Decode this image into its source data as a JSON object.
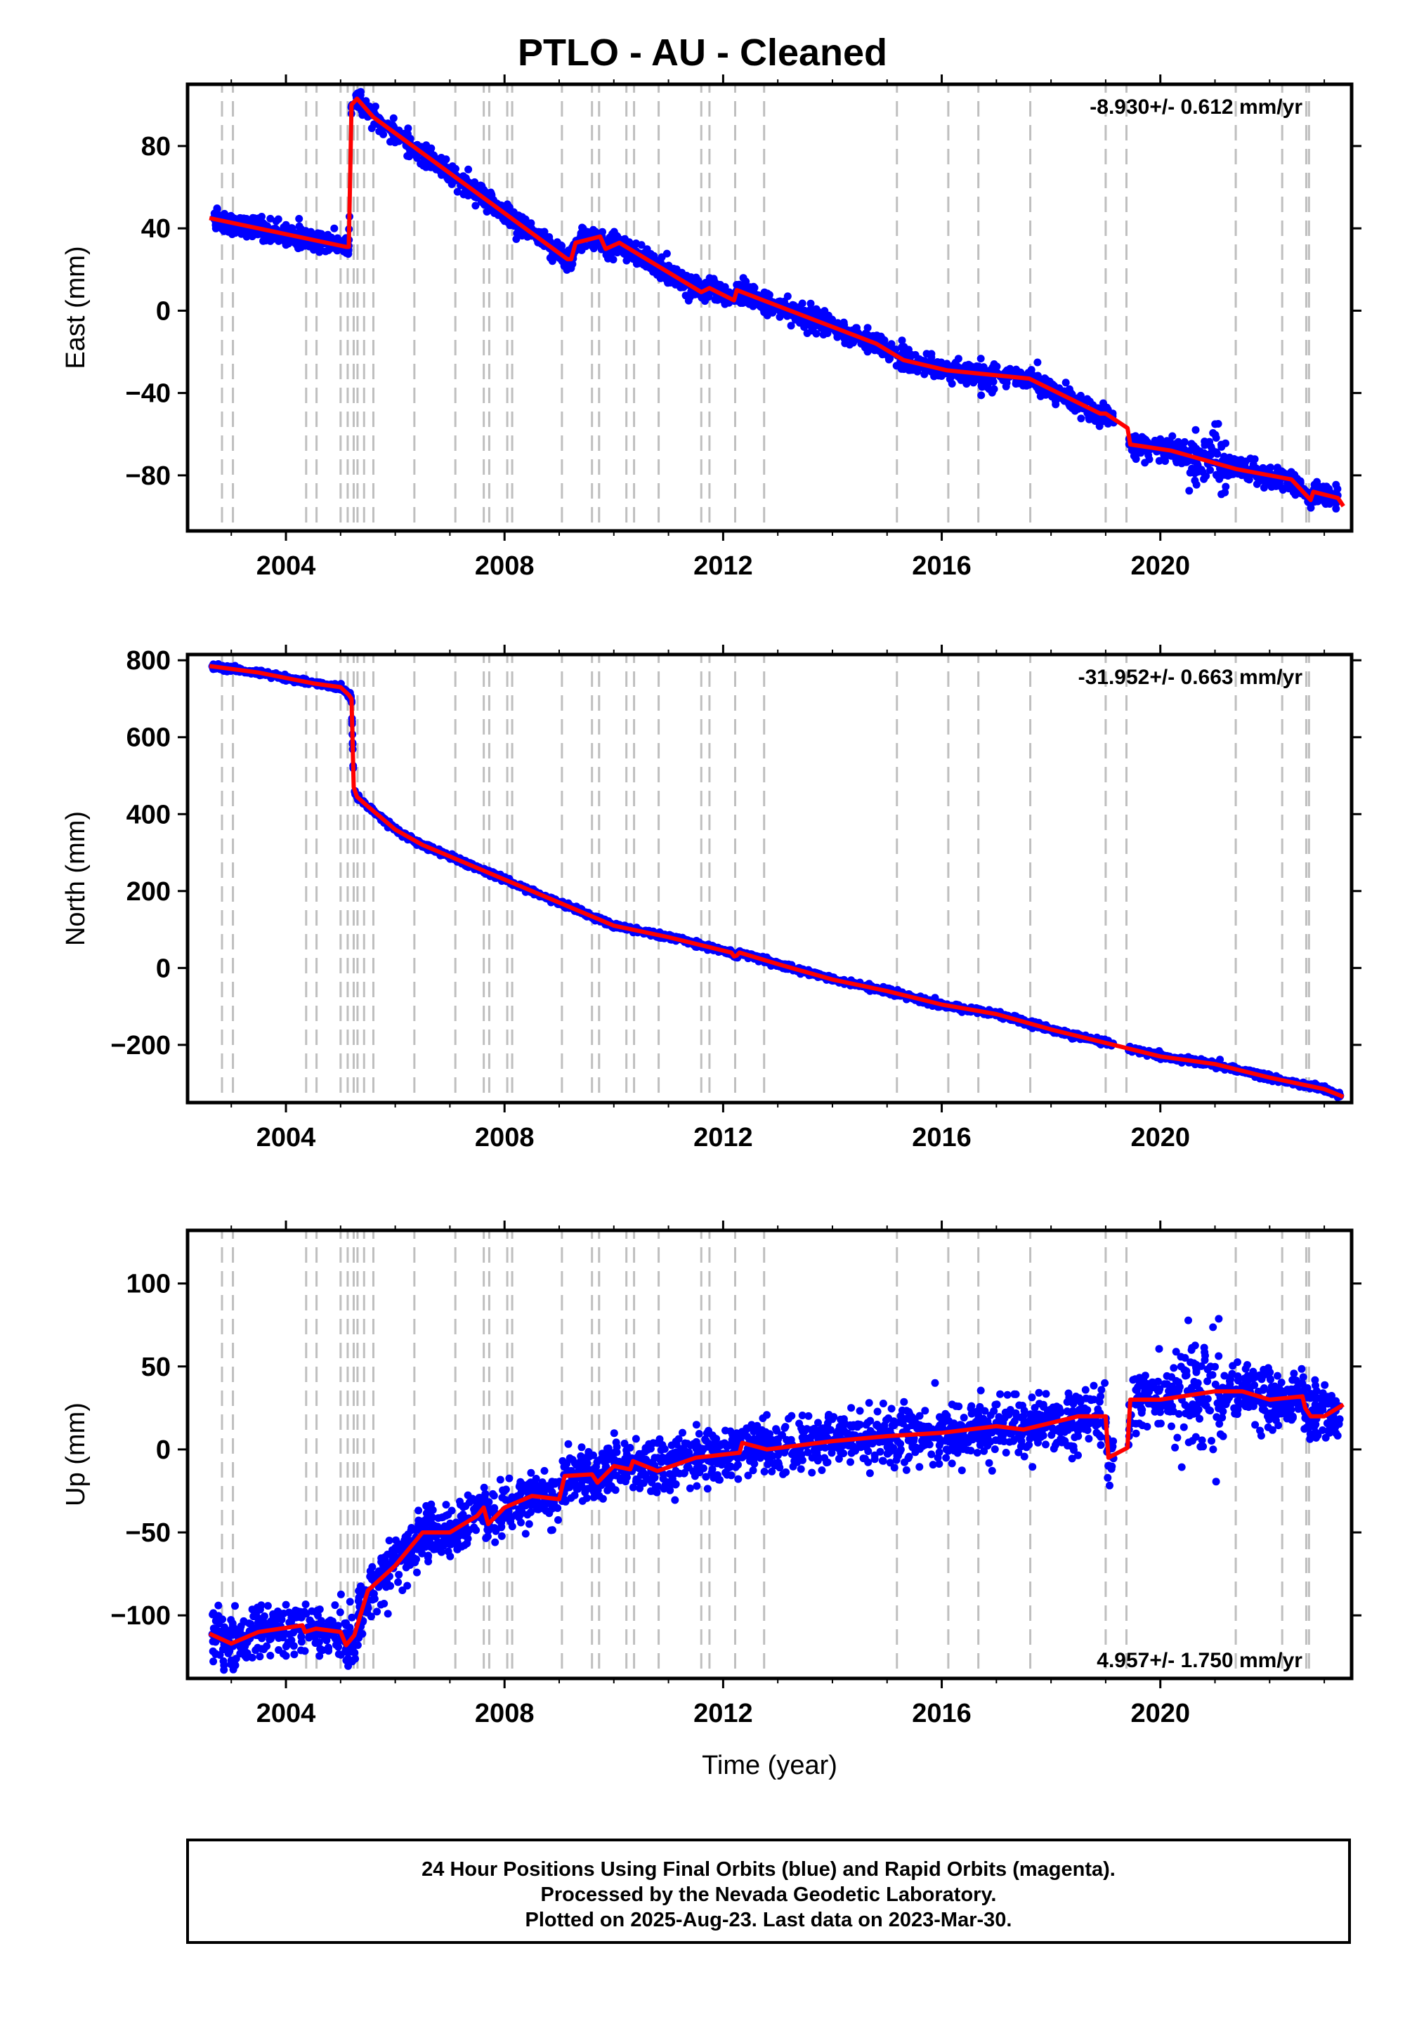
{
  "title": "PTLO  - AU - Cleaned",
  "colors": {
    "final_orbits": "#0000ff",
    "model": "#ff0000",
    "event_lines": "#bfbfbf",
    "frame": "#000000"
  },
  "footer": {
    "line1": "24 Hour Positions Using Final Orbits (blue) and Rapid Orbits (magenta).",
    "line2": "Processed by the Nevada Geodetic Laboratory.",
    "line3": "Plotted on 2025-Aug-23. Last data on 2023-Mar-30."
  },
  "chart_data": {
    "type": "scatter",
    "xlabel": "Time (year)",
    "xlim": [
      2002.2,
      2023.5
    ],
    "x_ticks": [
      2004,
      2008,
      2012,
      2016,
      2020
    ],
    "x_tick_labels": [
      "2004",
      "2008",
      "2012",
      "2016",
      "2020"
    ],
    "event_lines": [
      2002.83,
      2003.03,
      2004.37,
      2004.56,
      2005.0,
      2005.13,
      2005.24,
      2005.31,
      2005.43,
      2005.6,
      2006.35,
      2007.1,
      2007.62,
      2007.72,
      2008.05,
      2008.14,
      2009.05,
      2009.6,
      2009.73,
      2010.23,
      2010.37,
      2010.82,
      2011.6,
      2011.75,
      2012.22,
      2012.75,
      2015.18,
      2016.12,
      2016.67,
      2017.62,
      2019.0,
      2019.38,
      2021.38,
      2022.23,
      2022.67,
      2022.72
    ],
    "panels": [
      {
        "name": "east",
        "ylabel": "East (mm)",
        "ylim": [
          -107,
          110
        ],
        "y_ticks": [
          -80,
          -40,
          0,
          40,
          80
        ],
        "y_tick_labels": [
          "−80",
          "−40",
          "0",
          "40",
          "80"
        ],
        "rate_text": "-8.930+/- 0.612 mm/yr",
        "rate_position": "top-right",
        "scatter_sigma": 2.6,
        "model": [
          [
            2002.6,
            45
          ],
          [
            2005.1,
            31
          ],
          [
            2005.15,
            31
          ],
          [
            2005.2,
            100
          ],
          [
            2005.3,
            103
          ],
          [
            2005.6,
            94
          ],
          [
            2009.15,
            25
          ],
          [
            2009.22,
            25
          ],
          [
            2009.3,
            33
          ],
          [
            2009.75,
            36
          ],
          [
            2009.85,
            30
          ],
          [
            2010.1,
            33
          ],
          [
            2011.6,
            9
          ],
          [
            2011.75,
            11
          ],
          [
            2012.2,
            5
          ],
          [
            2012.25,
            10
          ],
          [
            2014.8,
            -16
          ],
          [
            2015.3,
            -24
          ],
          [
            2016.1,
            -29
          ],
          [
            2017.6,
            -33
          ],
          [
            2018.9,
            -50
          ],
          [
            2019.0,
            -50
          ],
          [
            2019.4,
            -57
          ],
          [
            2019.45,
            -65
          ],
          [
            2020.2,
            -68
          ],
          [
            2021.4,
            -77
          ],
          [
            2022.4,
            -82
          ],
          [
            2022.75,
            -92
          ],
          [
            2022.8,
            -88
          ],
          [
            2023.25,
            -91
          ],
          [
            2023.35,
            -95
          ]
        ]
      },
      {
        "name": "north",
        "ylabel": "North (mm)",
        "ylim": [
          -350,
          815
        ],
        "y_ticks": [
          -200,
          0,
          200,
          400,
          600,
          800
        ],
        "y_tick_labels": [
          "−200",
          "0",
          "200",
          "400",
          "600",
          "800"
        ],
        "rate_text": "-31.952+/- 0.663 mm/yr",
        "rate_position": "top-right",
        "scatter_sigma": 3.5,
        "model": [
          [
            2002.6,
            785
          ],
          [
            2003.5,
            768
          ],
          [
            2004.5,
            740
          ],
          [
            2005.0,
            730
          ],
          [
            2005.15,
            710
          ],
          [
            2005.2,
            700
          ],
          [
            2005.24,
            470
          ],
          [
            2005.3,
            445
          ],
          [
            2005.5,
            420
          ],
          [
            2006.0,
            360
          ],
          [
            2006.5,
            320
          ],
          [
            2007.0,
            290
          ],
          [
            2008.0,
            230
          ],
          [
            2009.0,
            170
          ],
          [
            2010.0,
            110
          ],
          [
            2011.0,
            80
          ],
          [
            2012.15,
            40
          ],
          [
            2012.2,
            30
          ],
          [
            2012.25,
            32
          ],
          [
            2012.3,
            40
          ],
          [
            2013.0,
            10
          ],
          [
            2014.0,
            -30
          ],
          [
            2015.0,
            -60
          ],
          [
            2016.0,
            -95
          ],
          [
            2017.0,
            -120
          ],
          [
            2018.0,
            -160
          ],
          [
            2019.0,
            -195
          ],
          [
            2020.0,
            -230
          ],
          [
            2021.0,
            -250
          ],
          [
            2022.0,
            -285
          ],
          [
            2023.0,
            -315
          ],
          [
            2023.35,
            -335
          ]
        ]
      },
      {
        "name": "up",
        "ylabel": "Up (mm)",
        "ylim": [
          -138,
          132
        ],
        "y_ticks": [
          -100,
          -50,
          0,
          50,
          100
        ],
        "y_tick_labels": [
          "−100",
          "−50",
          "0",
          "50",
          "100"
        ],
        "rate_text": "4.957+/- 1.750 mm/yr",
        "rate_position": "bottom-right",
        "scatter_sigma": 8,
        "model": [
          [
            2002.6,
            -111
          ],
          [
            2003.0,
            -117
          ],
          [
            2003.5,
            -110
          ],
          [
            2004.3,
            -106
          ],
          [
            2004.35,
            -110
          ],
          [
            2004.55,
            -108
          ],
          [
            2005.0,
            -110
          ],
          [
            2005.1,
            -118
          ],
          [
            2005.25,
            -112
          ],
          [
            2005.5,
            -85
          ],
          [
            2006.0,
            -70
          ],
          [
            2006.5,
            -50
          ],
          [
            2007.0,
            -50
          ],
          [
            2007.5,
            -40
          ],
          [
            2007.62,
            -35
          ],
          [
            2007.7,
            -45
          ],
          [
            2008.0,
            -35
          ],
          [
            2008.5,
            -28
          ],
          [
            2009.0,
            -30
          ],
          [
            2009.1,
            -16
          ],
          [
            2009.6,
            -15
          ],
          [
            2009.7,
            -20
          ],
          [
            2010.0,
            -10
          ],
          [
            2010.3,
            -12
          ],
          [
            2010.35,
            -7
          ],
          [
            2010.8,
            -13
          ],
          [
            2011.5,
            -5
          ],
          [
            2012.3,
            -2
          ],
          [
            2012.35,
            4
          ],
          [
            2012.8,
            0
          ],
          [
            2014.0,
            5
          ],
          [
            2015.0,
            8
          ],
          [
            2016.0,
            10
          ],
          [
            2017.0,
            14
          ],
          [
            2017.5,
            12
          ],
          [
            2018.5,
            20
          ],
          [
            2019.0,
            20
          ],
          [
            2019.05,
            -5
          ],
          [
            2019.4,
            1
          ],
          [
            2019.45,
            30
          ],
          [
            2020.0,
            30
          ],
          [
            2021.0,
            35
          ],
          [
            2021.5,
            35
          ],
          [
            2022.0,
            30
          ],
          [
            2022.6,
            32
          ],
          [
            2022.65,
            25
          ],
          [
            2022.75,
            20
          ],
          [
            2023.0,
            20
          ],
          [
            2023.35,
            27
          ]
        ]
      }
    ]
  }
}
